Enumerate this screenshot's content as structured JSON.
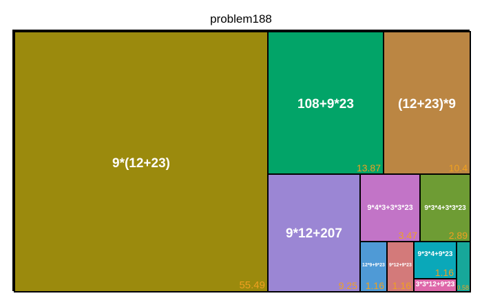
{
  "chart_data": {
    "type": "treemap",
    "title": "problem188",
    "value_color": "#f0a020",
    "cells": [
      {
        "label": "9*(12+23)",
        "value": 55.49,
        "color": "#9b8a0d"
      },
      {
        "label": "108+9*23",
        "value": 13.87,
        "color": "#02a468"
      },
      {
        "label": "(12+23)*9",
        "value": 10.4,
        "color": "#bb8643"
      },
      {
        "label": "9*12+207",
        "value": 9.25,
        "color": "#9b86d4"
      },
      {
        "label": "9*4*3+3*3*23",
        "value": 3.47,
        "color": "#c274c7"
      },
      {
        "label": "9*3*4+3*3*23",
        "value": 2.89,
        "color": "#6e9c34"
      },
      {
        "label": "12*9+9*23",
        "value": 1.16,
        "color": "#4f9ad6"
      },
      {
        "label": "9*12+9*23",
        "value": 1.16,
        "color": "#d37a7a"
      },
      {
        "label": "9*3*4+9*23",
        "value": 1.16,
        "color": "#0aa8b9"
      },
      {
        "label": "3*3*12+9*23",
        "value": "",
        "color": "#de67a9"
      },
      {
        "label": "",
        "value": 0.58,
        "color": "#17a79a"
      }
    ]
  }
}
